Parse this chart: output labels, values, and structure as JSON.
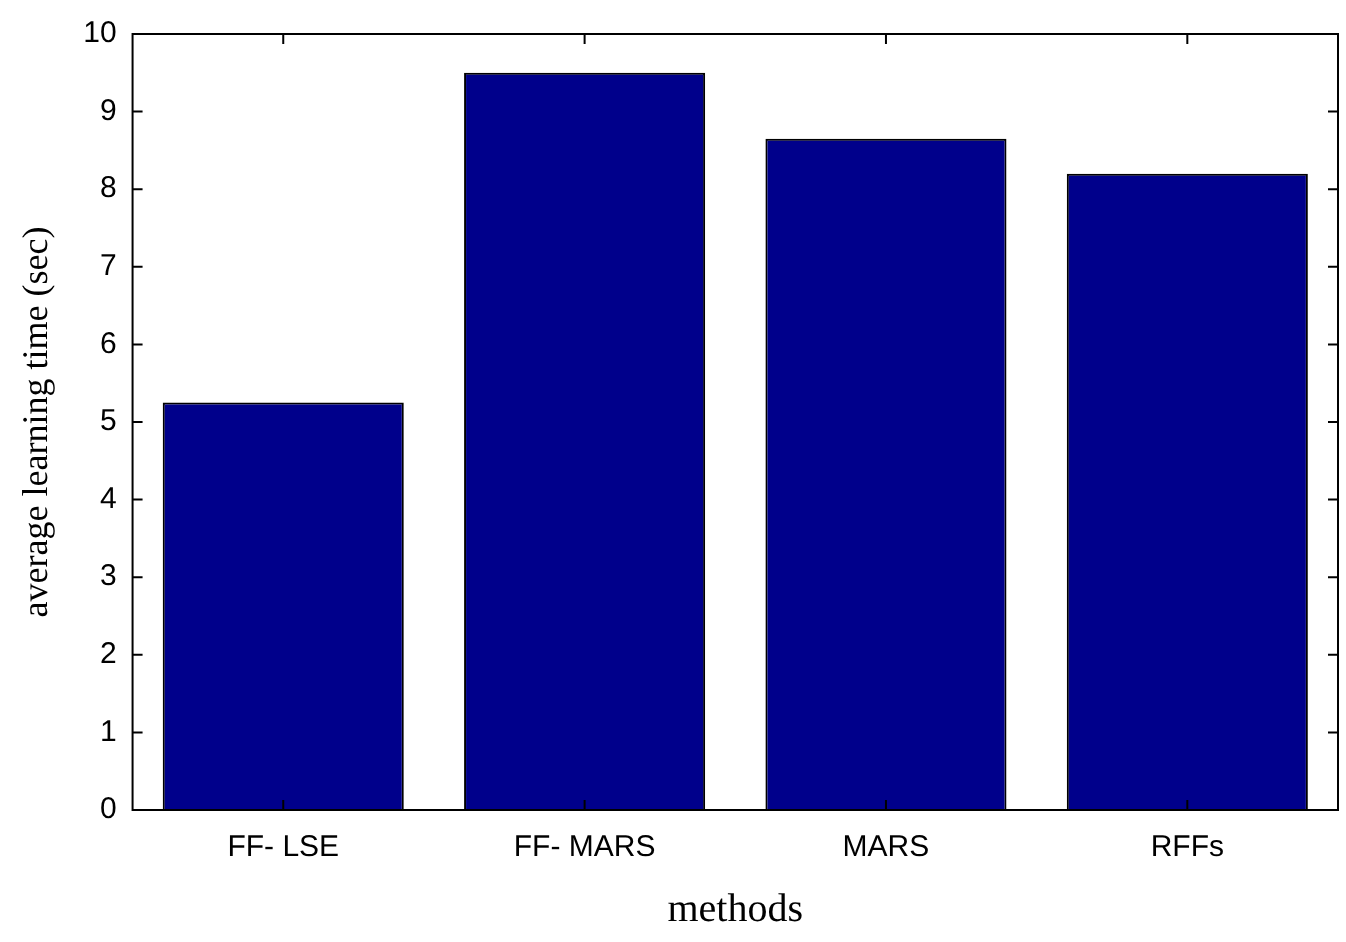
{
  "chart_data": {
    "type": "bar",
    "xlabel": "methods",
    "ylabel": "average learning time (sec)",
    "categories": [
      "FF- LSE",
      "FF- MARS",
      "MARS",
      "RFFs"
    ],
    "values": [
      5.25,
      9.5,
      8.65,
      8.2
    ],
    "color": "#00008b",
    "ylim": [
      0,
      10
    ],
    "yticks": [
      0,
      1,
      2,
      3,
      4,
      5,
      6,
      7,
      8,
      9,
      10
    ],
    "grid": false,
    "legend": false
  }
}
